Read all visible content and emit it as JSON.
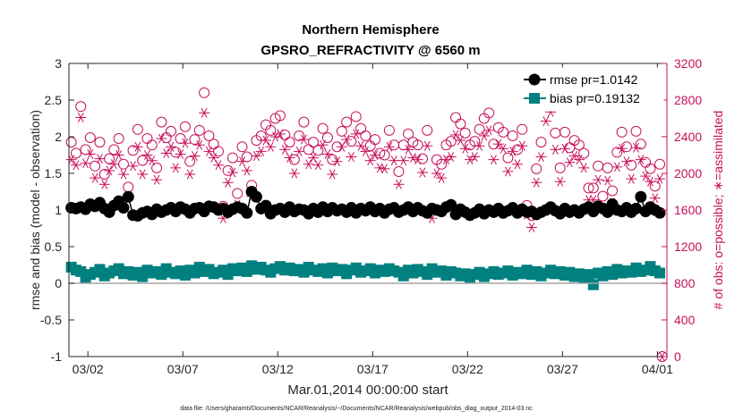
{
  "chart_data": {
    "type": "scatter",
    "title": [
      "Northern Hemisphere",
      "GPSRO_REFRACTIVITY @ 6560 m"
    ],
    "xlabel": "Mar.01,2014 00:00:00 start",
    "ylabel_left": "rmse and bias (model - observation)",
    "ylabel_right": "# of obs: o=possible; ∗=assimilated",
    "footer": "data file: /Users/gharamti/Documents/NCAR/Reanalysis/~/Documents/NCAR/Reanalysis/webpub/obs_diag_output_2014-03.nc",
    "xlim": [
      0,
      31.5
    ],
    "ylim_left": [
      -1,
      3
    ],
    "ylim_right": [
      0,
      3200
    ],
    "x_ticks": [
      {
        "v": 1,
        "label": "03/02"
      },
      {
        "v": 6,
        "label": "03/07"
      },
      {
        "v": 11,
        "label": "03/12"
      },
      {
        "v": 16,
        "label": "03/17"
      },
      {
        "v": 21,
        "label": "03/22"
      },
      {
        "v": 26,
        "label": "03/27"
      },
      {
        "v": 31,
        "label": "04/01"
      }
    ],
    "y_left_ticks": [
      {
        "v": -1,
        "label": "-1"
      },
      {
        "v": -0.5,
        "label": "-0.5"
      },
      {
        "v": 0,
        "label": "0"
      },
      {
        "v": 0.5,
        "label": "0.5"
      },
      {
        "v": 1,
        "label": "1"
      },
      {
        "v": 1.5,
        "label": "1.5"
      },
      {
        "v": 2,
        "label": "2"
      },
      {
        "v": 2.5,
        "label": "2.5"
      },
      {
        "v": 3,
        "label": "3"
      }
    ],
    "y_right_ticks": [
      {
        "v": 0,
        "label": "0"
      },
      {
        "v": 400,
        "label": "400"
      },
      {
        "v": 800,
        "label": "800"
      },
      {
        "v": 1200,
        "label": "1200"
      },
      {
        "v": 1600,
        "label": "1600"
      },
      {
        "v": 2000,
        "label": "2000"
      },
      {
        "v": 2400,
        "label": "2400"
      },
      {
        "v": 2800,
        "label": "2800"
      },
      {
        "v": 3200,
        "label": "3200"
      }
    ],
    "legend": [
      {
        "name": "rmse",
        "label": "rmse pr=1.0142",
        "color": "#000000",
        "marker": "circle"
      },
      {
        "name": "bias",
        "label": "bias pr=0.19132",
        "color": "#00807f",
        "marker": "square"
      }
    ],
    "colors": {
      "rmse": "#000000",
      "bias": "#00807f",
      "obs": "#c8105a",
      "zero_line": "#a6a6a6"
    },
    "series_note": "4 analyses per day (6-hourly), 124 time steps from Mar 01 to Apr 01",
    "rmse": [
      1.03,
      1.02,
      1.04,
      1.01,
      1.08,
      1.05,
      1.1,
      1.02,
      0.97,
      1.06,
      1.12,
      1.03,
      1.18,
      0.93,
      0.92,
      0.96,
      0.98,
      0.94,
      1.01,
      0.97,
      1.0,
      1.03,
      0.98,
      1.04,
      1.01,
      0.96,
      1.02,
      1.03,
      0.98,
      1.05,
      1.04,
      1.0,
      1.02,
      0.97,
      1.01,
      1.04,
      1.02,
      0.96,
      1.25,
      1.18,
      1.02,
      1.06,
      0.95,
      1.0,
      1.02,
      0.97,
      1.04,
      0.98,
      1.01,
      1.0,
      0.95,
      1.02,
      0.97,
      1.04,
      0.98,
      1.03,
      0.99,
      1.01,
      0.97,
      1.03,
      0.96,
      1.02,
      0.99,
      1.04,
      0.98,
      1.02,
      0.96,
      1.01,
      1.03,
      0.97,
      1.0,
      1.04,
      0.98,
      1.03,
      0.99,
      0.96,
      1.02,
      1.0,
      0.98,
      1.04,
      1.07,
      0.94,
      1.01,
      0.97,
      0.93,
      0.96,
      1.01,
      0.95,
      1.0,
      0.97,
      1.02,
      0.96,
      0.99,
      1.03,
      0.96,
      1.01,
      0.97,
      0.98,
      0.94,
      0.97,
      1.0,
      1.04,
      0.99,
      0.95,
      1.02,
      0.97,
      1.0,
      0.96,
      1.01,
      1.04,
      0.98,
      1.05,
      1.02,
      0.97,
      1.08,
      1.0,
      0.98,
      1.03,
      0.97,
      1.02,
      1.18,
      0.98,
      1.04,
      1.0,
      0.96
    ],
    "bias": [
      0.22,
      0.18,
      0.16,
      0.08,
      0.12,
      0.15,
      0.19,
      0.1,
      0.14,
      0.17,
      0.2,
      0.13,
      0.16,
      0.11,
      0.15,
      0.09,
      0.18,
      0.14,
      0.16,
      0.12,
      0.2,
      0.15,
      0.13,
      0.17,
      0.11,
      0.18,
      0.14,
      0.22,
      0.16,
      0.19,
      0.13,
      0.15,
      0.18,
      0.12,
      0.2,
      0.17,
      0.21,
      0.16,
      0.24,
      0.19,
      0.22,
      0.18,
      0.15,
      0.2,
      0.23,
      0.18,
      0.21,
      0.17,
      0.19,
      0.15,
      0.22,
      0.18,
      0.16,
      0.2,
      0.14,
      0.21,
      0.17,
      0.19,
      0.13,
      0.18,
      0.21,
      0.15,
      0.17,
      0.2,
      0.14,
      0.18,
      0.16,
      0.2,
      0.17,
      0.15,
      0.1,
      0.18,
      0.14,
      0.19,
      0.16,
      0.12,
      0.2,
      0.15,
      0.17,
      0.11,
      0.16,
      0.14,
      0.1,
      0.13,
      0.08,
      0.12,
      0.15,
      0.09,
      0.13,
      0.16,
      0.12,
      0.14,
      0.17,
      0.11,
      0.15,
      0.13,
      0.18,
      0.12,
      0.16,
      0.1,
      0.14,
      0.18,
      0.13,
      0.16,
      0.11,
      0.15,
      0.09,
      0.13,
      0.07,
      0.12,
      -0.02,
      0.14,
      0.1,
      0.16,
      0.12,
      0.19,
      0.14,
      0.17,
      0.15,
      0.21,
      0.16,
      0.18,
      0.23,
      0.17,
      0.14
    ],
    "obs_possible": [
      2340,
      2220,
      2730,
      2260,
      2390,
      2080,
      2340,
      1990,
      2160,
      2260,
      2380,
      2100,
      1850,
      2250,
      2480,
      2140,
      2380,
      2310,
      2060,
      2560,
      2390,
      2460,
      2230,
      2380,
      2510,
      2130,
      2370,
      2470,
      2880,
      2410,
      2320,
      2240,
      1640,
      2030,
      2170,
      1780,
      2290,
      2180,
      1870,
      2360,
      2410,
      2530,
      2470,
      2600,
      2630,
      2420,
      2340,
      2150,
      2410,
      2560,
      2260,
      2340,
      2250,
      2490,
      2390,
      2150,
      2290,
      2460,
      2560,
      2350,
      2620,
      2490,
      2410,
      2300,
      2370,
      2220,
      2200,
      2470,
      2310,
      2020,
      2310,
      2430,
      2340,
      2310,
      2160,
      2470,
      1620,
      2150,
      2100,
      2310,
      2350,
      2610,
      2540,
      2440,
      2310,
      2350,
      2480,
      2600,
      2660,
      2320,
      2500,
      2450,
      2170,
      2410,
      2260,
      2480,
      1650,
      1540,
      2050,
      2340,
      2770,
      2880,
      2440,
      2060,
      2450,
      2280,
      2360,
      2310,
      2220,
      1840,
      1840,
      2080,
      1750,
      2060,
      1810,
      2230,
      2450,
      2290,
      2090,
      2460,
      2320,
      2120,
      2050,
      1860,
      2100
    ],
    "obs_assimilated": [
      2150,
      2090,
      2610,
      2110,
      2210,
      1950,
      2160,
      1880,
      2030,
      2100,
      2200,
      1990,
      1760,
      2080,
      2290,
      1990,
      2200,
      2140,
      1930,
      2380,
      2220,
      2290,
      2060,
      2210,
      2330,
      1990,
      2190,
      2310,
      2660,
      2240,
      2170,
      2090,
      1510,
      1900,
      2010,
      1660,
      2130,
      2030,
      1750,
      2190,
      2240,
      2360,
      2290,
      2400,
      2430,
      2260,
      2170,
      2000,
      2240,
      2370,
      2100,
      2170,
      2090,
      2310,
      2210,
      1990,
      2130,
      2290,
      2370,
      2180,
      2430,
      2300,
      2240,
      2140,
      2200,
      2060,
      2050,
      2290,
      2140,
      1880,
      2140,
      2260,
      2170,
      2150,
      2010,
      2300,
      1510,
      2000,
      1950,
      2150,
      2180,
      2420,
      2360,
      2270,
      2150,
      2180,
      2300,
      2410,
      2470,
      2150,
      2320,
      2270,
      2020,
      2240,
      2100,
      2300,
      1550,
      1410,
      1900,
      2180,
      2570,
      2670,
      2260,
      1910,
      2270,
      2120,
      2190,
      2150,
      2060,
      1710,
      1710,
      1930,
      1630,
      1920,
      1680,
      2070,
      2270,
      2130,
      1940,
      2280,
      2150,
      1970,
      1910,
      1730,
      1940
    ],
    "obs_end_point": {
      "x": 31.25,
      "possible": 0,
      "assimilated": 0
    }
  }
}
